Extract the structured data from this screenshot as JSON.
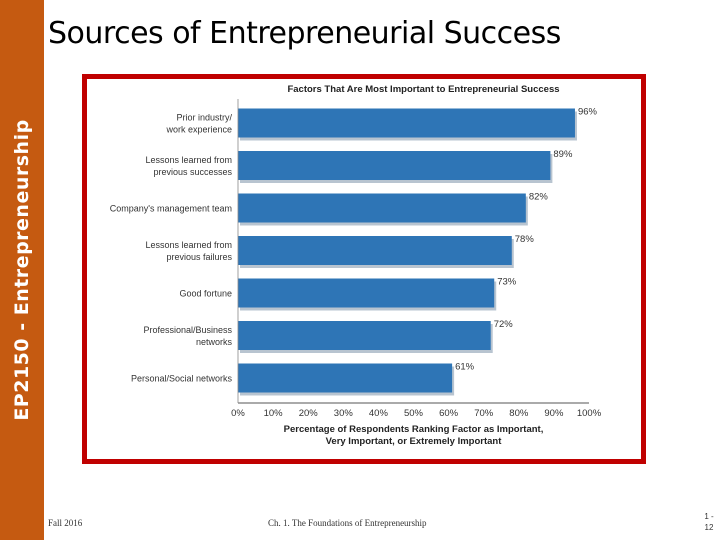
{
  "sidebar": {
    "label": "EP2150 - Entrepreneurship"
  },
  "slide": {
    "title": "Sources of Entrepreneurial Success"
  },
  "footer": {
    "date": "Fall 2016",
    "chapter": "Ch. 1. The Foundations of Entrepreneurship",
    "page_top": "1 -",
    "page_bottom": "12"
  },
  "colors": {
    "bar": "#2e75b6",
    "frame": "#c00000",
    "sidebar": "#c55a11"
  },
  "chart_data": {
    "type": "bar",
    "orientation": "horizontal",
    "title": "Factors That Are Most Important to Entrepreneurial Success",
    "categories": [
      [
        "Prior industry/",
        "work experience"
      ],
      [
        "Lessons learned from",
        "previous successes"
      ],
      [
        "Company's management team"
      ],
      [
        "Lessons learned from",
        "previous failures"
      ],
      [
        "Good fortune"
      ],
      [
        "Professional/Business",
        "networks"
      ],
      [
        "Personal/Social networks"
      ]
    ],
    "values": [
      96,
      89,
      82,
      78,
      73,
      72,
      61
    ],
    "value_labels": [
      "96%",
      "89%",
      "82%",
      "78%",
      "73%",
      "72%",
      "61%"
    ],
    "xlim": [
      0,
      100
    ],
    "ticks": [
      "0%",
      "10%",
      "20%",
      "30%",
      "40%",
      "50%",
      "60%",
      "70%",
      "80%",
      "90%",
      "100%"
    ],
    "xlabel": [
      "Percentage of Respondents Ranking Factor as Important,",
      "Very Important, or Extremely Important"
    ],
    "grid": false
  }
}
